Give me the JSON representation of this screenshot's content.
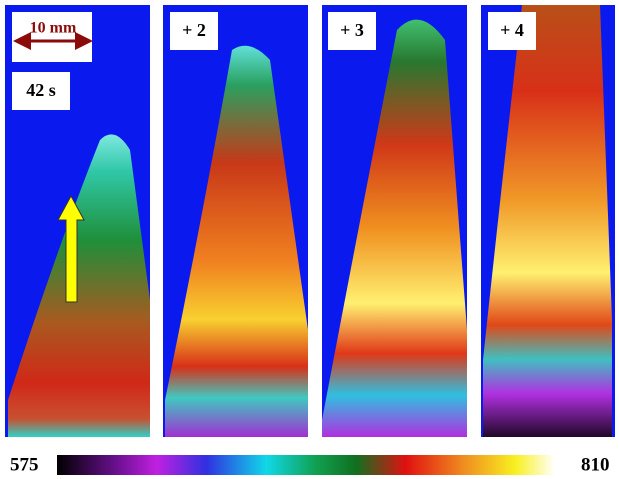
{
  "panels": [
    {
      "label": "42 s",
      "scale_label": "10 mm"
    },
    {
      "label": "+ 2"
    },
    {
      "label": "+ 3"
    },
    {
      "label": "+ 4"
    }
  ],
  "colorbar": {
    "min": 575,
    "max": 810
  }
}
